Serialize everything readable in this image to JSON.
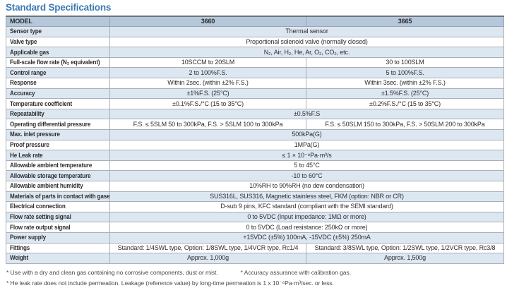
{
  "page": {
    "title": "Standard Specifications"
  },
  "table": {
    "header": {
      "model_label": "MODEL",
      "col1": "3660",
      "col2": "3665"
    },
    "rows": [
      {
        "label": "Sensor type",
        "span": "Thermal sensor"
      },
      {
        "label": "Valve type",
        "span": "Proportional solenoid valve (normally closed)"
      },
      {
        "label": "Applicable gas",
        "span": "N₂, Air, H₂, He, Ar, O₂, CO₂, etc."
      },
      {
        "label": "Full-scale flow rate (N₂ equivalent)",
        "col1": "10SCCM to 20SLM",
        "col2": "30 to 100SLM"
      },
      {
        "label": "Control range",
        "col1": "2 to 100%F.S.",
        "col2": "5 to 100%F.S."
      },
      {
        "label": "Response",
        "col1": "Within 2sec. (within ±2% F.S.)",
        "col2": "Within 3sec. (within ±2% F.S.)"
      },
      {
        "label": "Accuracy",
        "col1": "±1%F.S. (25°C)",
        "col2": "±1.5%F.S. (25°C)"
      },
      {
        "label": "Temperature coefficient",
        "col1": "±0.1%F.S./°C (15 to 35°C)",
        "col2": "±0.2%F.S./°C (15 to 35°C)"
      },
      {
        "label": "Repeatability",
        "span": "±0.5%F.S"
      },
      {
        "label": "Operating differential pressure",
        "col1": "F.S. ≤ 5SLM 50 to 300kPa, F.S. > 5SLM 100 to 300kPa",
        "col2": "F.S. ≤ 50SLM 150 to 300kPa, F.S. > 50SLM 200 to 300kPa"
      },
      {
        "label": "Max. inlet pressure",
        "span": "500kPa(G)"
      },
      {
        "label": "Proof pressure",
        "span": "1MPa(G)"
      },
      {
        "label": "He Leak rate",
        "span": "≤ 1 × 10⁻⁸Pa·m³/s"
      },
      {
        "label": "Allowable ambient temperature",
        "span": "5 to 45°C"
      },
      {
        "label": "Allowable storage temperature",
        "span": "-10 to 60°C"
      },
      {
        "label": "Allowable ambient humidity",
        "span": "10%RH to 90%RH (no dew condensation)"
      },
      {
        "label": "Materials of parts in contact with gases",
        "span": "SUS316L, SUS316, Magnetic stainless steel, FKM (option: NBR or CR)"
      },
      {
        "label": "Electrical connection",
        "span": "D-sub 9 pins, KFC standard (compliant with the SEMI standard)"
      },
      {
        "label": "Flow rate setting signal",
        "span": "0 to 5VDC (Input impedance: 1MΩ or more)"
      },
      {
        "label": "Flow rate output signal",
        "span": "0 to 5VDC (Load resistance: 250kΩ or more)"
      },
      {
        "label": "Power supply",
        "span": "+15VDC (±5%) 100mA, -15VDC (±5%) 250mA"
      },
      {
        "label": "Fittings",
        "col1": "Standard: 1/4SWL type, Option: 1/8SWL type, 1/4VCR type, Rc1/4",
        "col2": "Standard: 3/8SWL type, Option: 1/2SWL type, 1/2VCR type, Rc3/8"
      },
      {
        "label": "Weight",
        "col1": "Approx. 1,000g",
        "col2": "Approx. 1,500g"
      }
    ]
  },
  "footnotes": {
    "note1": "* Use with a dry and clean gas containing no corrosive components, dust or mist.",
    "note2": "* Accuracy assurance with calibration gas.",
    "note3": "* He leak rate does not include permeation. Leakage (reference value) by long-time permeation is 1 x 10⁻⁶Pa·m³/sec. or less."
  },
  "colors": {
    "title_blue": "#3b79b3",
    "header_row_bg": "#b5c7da",
    "shaded_row_bg": "#dce7f1"
  }
}
